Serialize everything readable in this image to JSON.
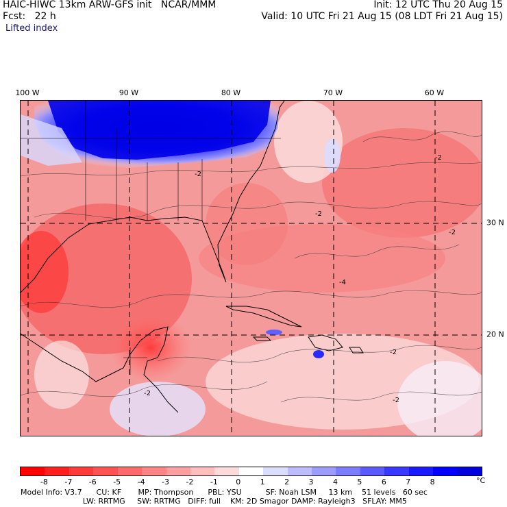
{
  "header": {
    "title": "HAIC-HIWC 13km ARW-GFS init   NCAR/MMM",
    "forecast": "Fcst:   22 h",
    "field": "Lifted index",
    "init": "Init: 12 UTC Thu 20 Aug 15",
    "valid": "Valid: 10 UTC Fri 21 Aug 15 (08 LDT Fri 21 Aug 15)"
  },
  "map": {
    "longitudes": [
      "100 W",
      "90 W",
      "80 W",
      "70 W",
      "60 W"
    ],
    "latitudes": [
      "30 N",
      "20 N"
    ],
    "contour_labels": [
      "-2",
      "-2",
      "-2",
      "-4",
      "-2",
      "-2",
      "-2",
      "-2"
    ]
  },
  "colorbar": {
    "labels": [
      "-8",
      "-7",
      "-6",
      "-5",
      "-4",
      "-3",
      "-2",
      "-1",
      "0",
      "1",
      "2",
      "3",
      "4",
      "5",
      "6",
      "7",
      "8"
    ],
    "unit": "°C",
    "colors": [
      "#ff0000",
      "#ff1f1f",
      "#ff3a3a",
      "#ff5252",
      "#ff6b6b",
      "#ff8585",
      "#ffa0a0",
      "#ffbdbd",
      "#ffdada",
      "#ffffff",
      "#dcdcff",
      "#bcbcff",
      "#9c9cff",
      "#7c7cff",
      "#5a5aff",
      "#3838ff",
      "#1a1aff",
      "#0000ff",
      "#0000dd"
    ]
  },
  "footer": {
    "line1": "Model Info: V3.7      CU: KF       MP: Thompson      PBL: YSU          SF: Noah LSM     13 km    51 levels   60 sec",
    "line2": "                          LW: RRTMG     SW: RRTMG   DIFF: full    KM: 2D Smagor DAMP: Rayleigh3   SFLAY: MM5"
  }
}
